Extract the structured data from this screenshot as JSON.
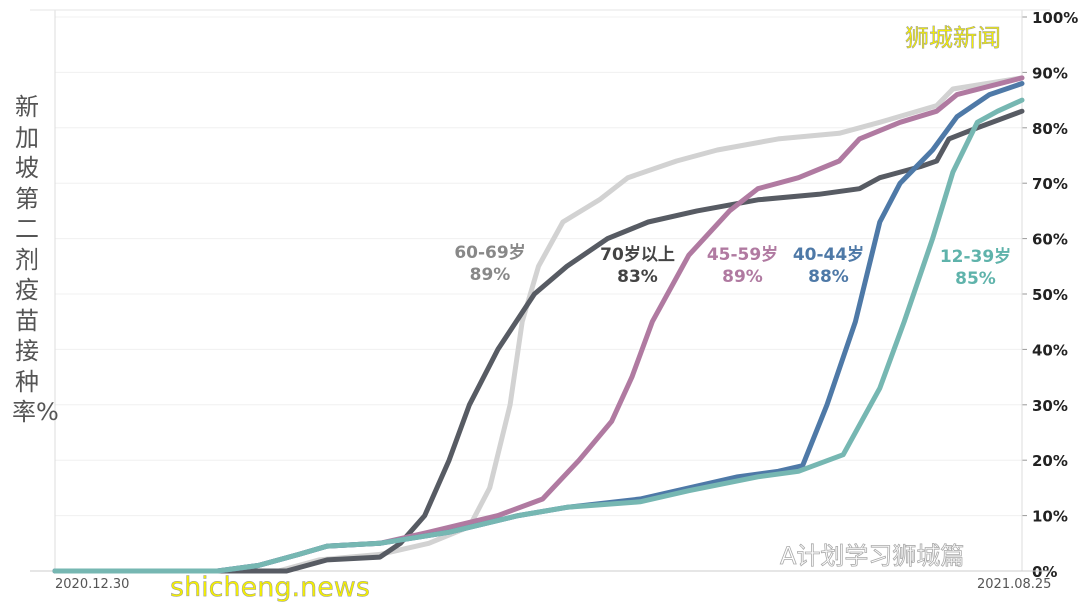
{
  "chart_data": {
    "type": "line",
    "ylabel": "新加坡第二剂疫苗接种率%",
    "ylim": [
      0,
      100
    ],
    "yticks": [
      "0%",
      "10%",
      "20%",
      "30%",
      "40%",
      "50%",
      "60%",
      "70%",
      "80%",
      "90%",
      "100%"
    ],
    "xlim": [
      "2020-12-30",
      "2021-08-25"
    ],
    "xtick_labels": [
      "2020.12.30",
      "2021.08.25"
    ],
    "grid": true,
    "series": [
      {
        "name": "60-69岁",
        "end_label": "89%",
        "color": "#d2d2d2",
        "points": [
          [
            "2020-12-30",
            0
          ],
          [
            "2021-02-23",
            0
          ],
          [
            "2021-03-05",
            2
          ],
          [
            "2021-03-20",
            3
          ],
          [
            "2021-04-01",
            5
          ],
          [
            "2021-04-11",
            8
          ],
          [
            "2021-04-16",
            15
          ],
          [
            "2021-04-21",
            30
          ],
          [
            "2021-04-24",
            45
          ],
          [
            "2021-04-28",
            55
          ],
          [
            "2021-05-04",
            63
          ],
          [
            "2021-05-13",
            67
          ],
          [
            "2021-05-20",
            71
          ],
          [
            "2021-06-01",
            74
          ],
          [
            "2021-06-11",
            76
          ],
          [
            "2021-06-26",
            78
          ],
          [
            "2021-07-11",
            79
          ],
          [
            "2021-07-21",
            81
          ],
          [
            "2021-08-04",
            84
          ],
          [
            "2021-08-08",
            87
          ],
          [
            "2021-08-25",
            89
          ]
        ]
      },
      {
        "name": "70岁以上",
        "end_label": "83%",
        "color": "#575b63",
        "points": [
          [
            "2020-12-30",
            0
          ],
          [
            "2021-02-25",
            0
          ],
          [
            "2021-03-07",
            2
          ],
          [
            "2021-03-20",
            2.5
          ],
          [
            "2021-03-25",
            5
          ],
          [
            "2021-03-31",
            10
          ],
          [
            "2021-04-06",
            20
          ],
          [
            "2021-04-11",
            30
          ],
          [
            "2021-04-18",
            40
          ],
          [
            "2021-04-27",
            50
          ],
          [
            "2021-05-05",
            55
          ],
          [
            "2021-05-15",
            60
          ],
          [
            "2021-05-25",
            63
          ],
          [
            "2021-06-06",
            65
          ],
          [
            "2021-06-21",
            67
          ],
          [
            "2021-07-06",
            68
          ],
          [
            "2021-07-16",
            69
          ],
          [
            "2021-07-21",
            71
          ],
          [
            "2021-07-31",
            73
          ],
          [
            "2021-08-04",
            74
          ],
          [
            "2021-08-07",
            78
          ],
          [
            "2021-08-14",
            80
          ],
          [
            "2021-08-25",
            83
          ]
        ]
      },
      {
        "name": "45-59岁",
        "end_label": "89%",
        "color": "#b07aa1",
        "points": [
          [
            "2020-12-30",
            0
          ],
          [
            "2021-02-08",
            0
          ],
          [
            "2021-02-18",
            1
          ],
          [
            "2021-02-28",
            3
          ],
          [
            "2021-03-07",
            4.5
          ],
          [
            "2021-03-20",
            5
          ],
          [
            "2021-04-01",
            7
          ],
          [
            "2021-04-18",
            10
          ],
          [
            "2021-04-29",
            13
          ],
          [
            "2021-05-08",
            20
          ],
          [
            "2021-05-16",
            27
          ],
          [
            "2021-05-21",
            35
          ],
          [
            "2021-05-26",
            45
          ],
          [
            "2021-06-04",
            57
          ],
          [
            "2021-06-14",
            65
          ],
          [
            "2021-06-21",
            69
          ],
          [
            "2021-07-01",
            71
          ],
          [
            "2021-07-11",
            74
          ],
          [
            "2021-07-16",
            78
          ],
          [
            "2021-07-26",
            81
          ],
          [
            "2021-08-04",
            83
          ],
          [
            "2021-08-09",
            86
          ],
          [
            "2021-08-25",
            89
          ]
        ]
      },
      {
        "name": "40-44岁",
        "end_label": "88%",
        "color": "#4e79a7",
        "points": [
          [
            "2020-12-30",
            0
          ],
          [
            "2021-02-08",
            0
          ],
          [
            "2021-02-18",
            1
          ],
          [
            "2021-02-28",
            3
          ],
          [
            "2021-03-07",
            4.5
          ],
          [
            "2021-03-20",
            5
          ],
          [
            "2021-04-06",
            7
          ],
          [
            "2021-04-23",
            10
          ],
          [
            "2021-05-05",
            11.5
          ],
          [
            "2021-05-23",
            13
          ],
          [
            "2021-06-04",
            15
          ],
          [
            "2021-06-16",
            17
          ],
          [
            "2021-06-26",
            18
          ],
          [
            "2021-07-02",
            19
          ],
          [
            "2021-07-08",
            30
          ],
          [
            "2021-07-15",
            45
          ],
          [
            "2021-07-21",
            63
          ],
          [
            "2021-07-26",
            70
          ],
          [
            "2021-08-03",
            76
          ],
          [
            "2021-08-09",
            82
          ],
          [
            "2021-08-17",
            86
          ],
          [
            "2021-08-25",
            88
          ]
        ]
      },
      {
        "name": "12-39岁",
        "end_label": "85%",
        "color": "#76b7b2",
        "points": [
          [
            "2020-12-30",
            0
          ],
          [
            "2021-02-08",
            0
          ],
          [
            "2021-02-18",
            1
          ],
          [
            "2021-02-28",
            3
          ],
          [
            "2021-03-07",
            4.5
          ],
          [
            "2021-03-20",
            5
          ],
          [
            "2021-04-06",
            7
          ],
          [
            "2021-04-23",
            10
          ],
          [
            "2021-05-05",
            11.5
          ],
          [
            "2021-05-23",
            12.5
          ],
          [
            "2021-06-04",
            14.5
          ],
          [
            "2021-06-21",
            17
          ],
          [
            "2021-07-01",
            18
          ],
          [
            "2021-07-12",
            21
          ],
          [
            "2021-07-21",
            33
          ],
          [
            "2021-07-27",
            45
          ],
          [
            "2021-08-03",
            60
          ],
          [
            "2021-08-08",
            72
          ],
          [
            "2021-08-14",
            81
          ],
          [
            "2021-08-19",
            83
          ],
          [
            "2021-08-25",
            85
          ]
        ]
      }
    ]
  },
  "watermarks": {
    "top_right": "狮城新闻",
    "bottom_left": "shicheng.news",
    "wechat": "A计划学习狮城篇"
  }
}
